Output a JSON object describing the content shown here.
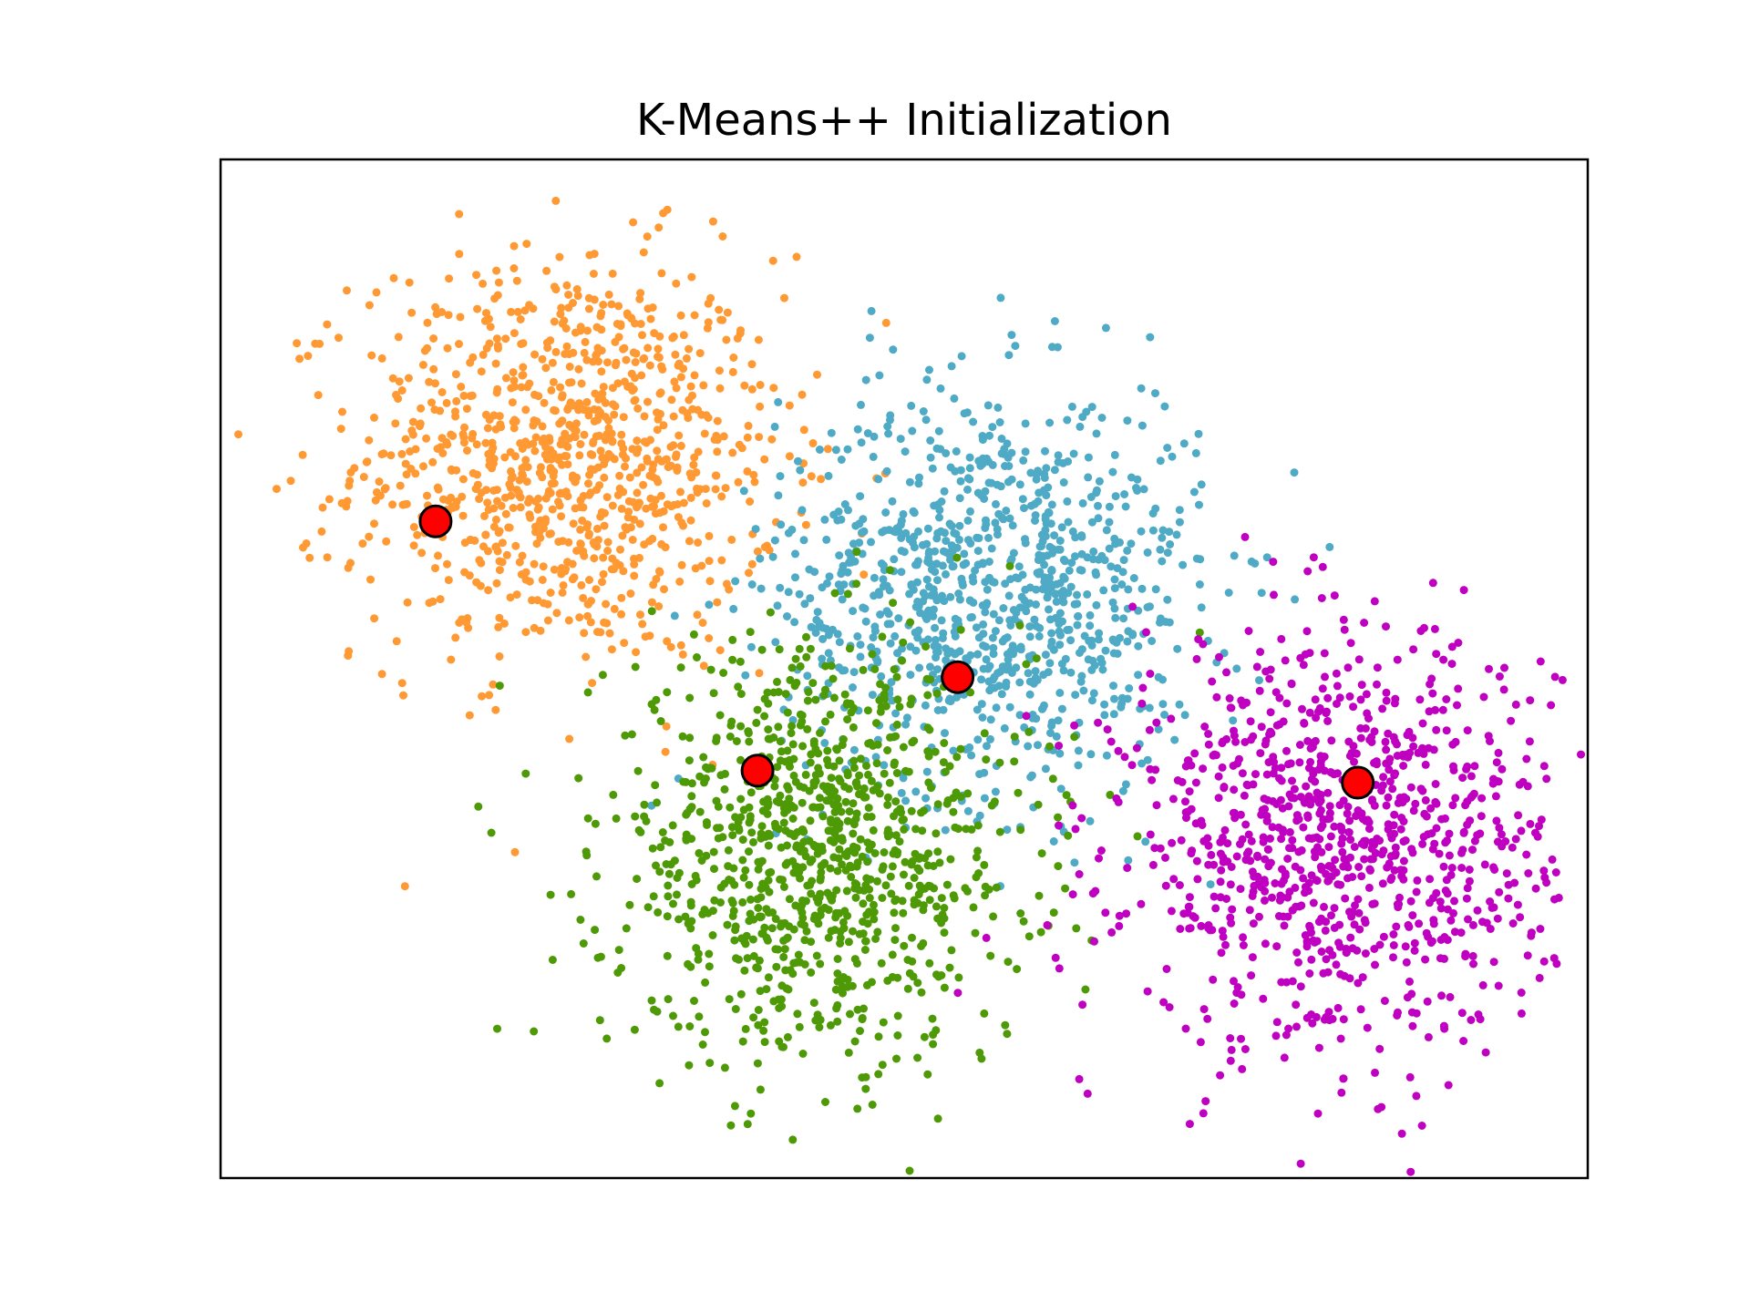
{
  "chart_data": {
    "type": "scatter",
    "title": "K-Means++ Initialization",
    "xlabel": "",
    "ylabel": "",
    "xticks": [],
    "yticks": [],
    "xlim": [
      -0.5,
      10.5
    ],
    "ylim": [
      -0.5,
      8.0
    ],
    "grid": false,
    "legend": "none",
    "clusters": [
      {
        "color": "#ff9933",
        "center": [
          2.3,
          5.5
        ],
        "std": 0.85,
        "count": 1000
      },
      {
        "color": "#4faac6",
        "center": [
          5.7,
          4.4
        ],
        "std": 0.85,
        "count": 1000
      },
      {
        "color": "#4e9a06",
        "center": [
          4.3,
          2.2
        ],
        "std": 0.85,
        "count": 1000
      },
      {
        "color": "#c000c0",
        "center": [
          8.5,
          2.3
        ],
        "std": 0.85,
        "count": 1000
      }
    ],
    "initial_centers": {
      "color": "#ff0000",
      "edge_color": "#000000",
      "points": [
        {
          "x": 1.23,
          "y": 4.98
        },
        {
          "x": 5.43,
          "y": 3.68
        },
        {
          "x": 3.82,
          "y": 2.9
        },
        {
          "x": 8.65,
          "y": 2.8
        }
      ]
    }
  }
}
